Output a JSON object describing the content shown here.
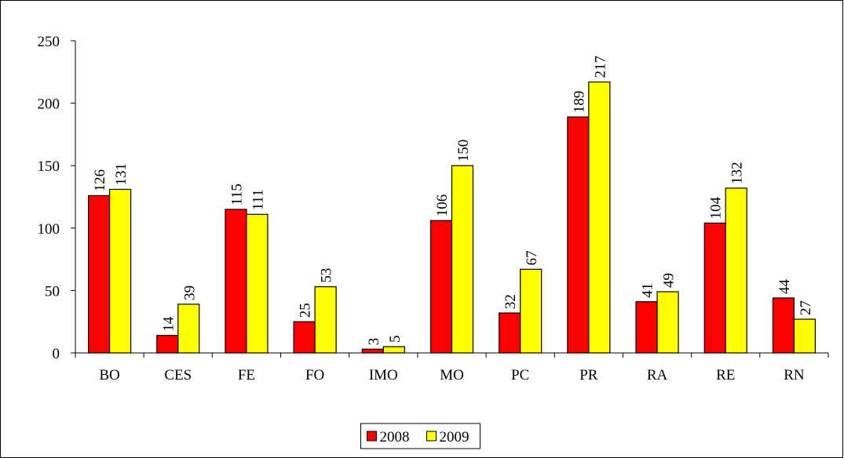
{
  "chart_data": {
    "type": "bar",
    "categories": [
      "BO",
      "CES",
      "FE",
      "FO",
      "IMO",
      "MO",
      "PC",
      "PR",
      "RA",
      "RE",
      "RN"
    ],
    "series": [
      {
        "name": "2008",
        "color": "#ff0000",
        "values": [
          126,
          14,
          115,
          25,
          3,
          106,
          32,
          189,
          41,
          104,
          44
        ]
      },
      {
        "name": "2009",
        "color": "#ffff00",
        "values": [
          131,
          39,
          111,
          53,
          5,
          150,
          67,
          217,
          49,
          132,
          27
        ]
      }
    ],
    "ylim": [
      0,
      250
    ],
    "yticks": [
      0,
      50,
      100,
      150,
      200,
      250
    ],
    "grid": false,
    "legend": "bottom"
  }
}
